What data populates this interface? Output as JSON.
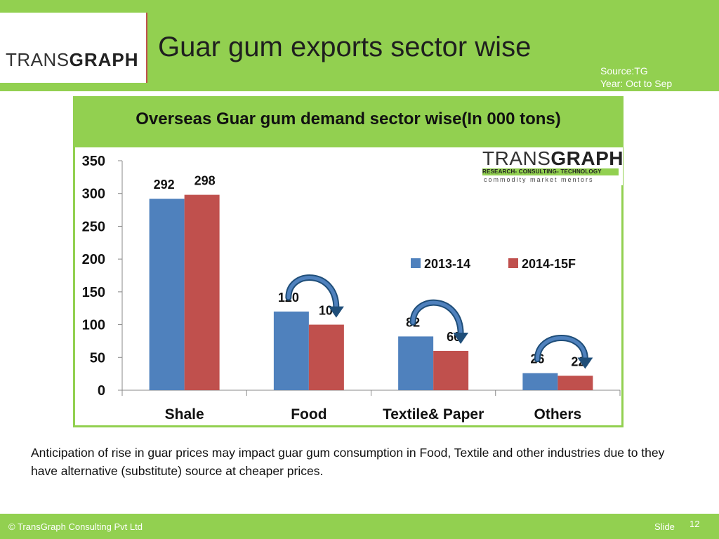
{
  "header": {
    "logo_prefix": "TRANS",
    "logo_bold": "GRAPH",
    "title": "Guar gum exports sector wise",
    "source_line1": "Source:TG",
    "source_line2": "Year: Oct to Sep"
  },
  "chart_logo": {
    "prefix": "TRANS",
    "bold": "GRAPH",
    "tagline": "RESEARCH- CONSULTING- TECHNOLOGY",
    "subline": "commodity market mentors"
  },
  "chart_data": {
    "type": "bar",
    "title": "Overseas Guar gum demand sector wise(In 000 tons)",
    "categories": [
      "Shale",
      "Food",
      "Textile& Paper",
      "Others"
    ],
    "series": [
      {
        "name": "2013-14",
        "values": [
          292,
          120,
          82,
          26
        ],
        "color": "#4f81bd"
      },
      {
        "name": "2014-15F",
        "values": [
          298,
          100,
          60,
          22
        ],
        "color": "#c0504d"
      }
    ],
    "ylim": [
      0,
      350
    ],
    "yticks": [
      0,
      50,
      100,
      150,
      200,
      250,
      300,
      350
    ],
    "grid": false,
    "legend": "center-right"
  },
  "footnote": "Anticipation of rise in guar prices may impact guar gum consumption in Food, Textile and other industries due to they have alternative (substitute) source at cheaper prices.",
  "footer": {
    "copyright": "© TransGraph Consulting Pvt Ltd",
    "slide_label": "Slide",
    "slide_number": "12"
  }
}
